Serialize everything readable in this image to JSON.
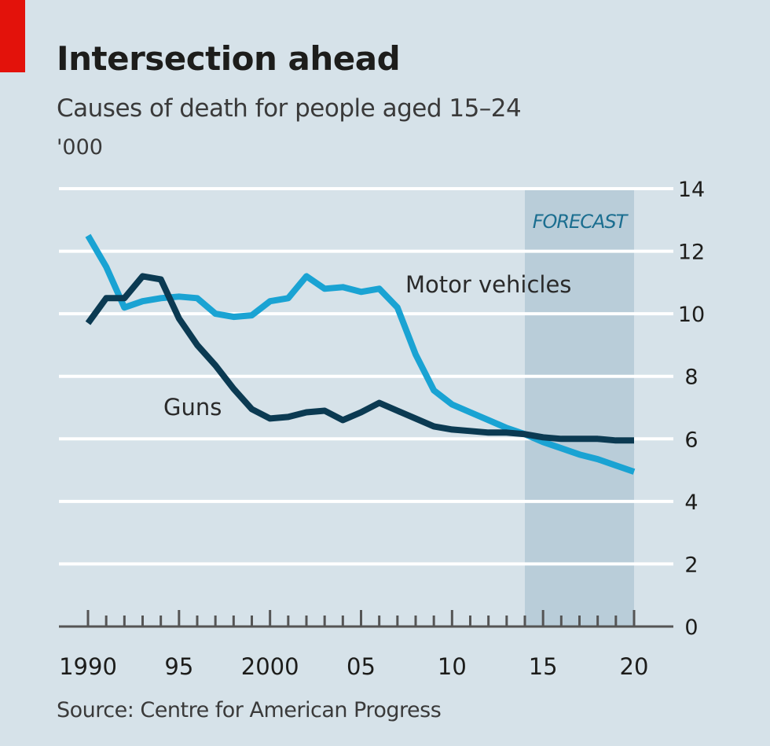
{
  "colors": {
    "accent_red": "#e3120b",
    "guns": "#0b3a52",
    "motor": "#1aa3d3",
    "forecast_band": "#b9cdd9",
    "background": "#d6e2e9"
  },
  "chart_data": {
    "type": "line",
    "title": "Intersection ahead",
    "subtitle": "Causes of death for people aged 15–24",
    "unit": "'000",
    "source": "Source: Centre for American Progress",
    "x": [
      1990,
      1991,
      1992,
      1993,
      1994,
      1995,
      1996,
      1997,
      1998,
      1999,
      2000,
      2001,
      2002,
      2003,
      2004,
      2005,
      2006,
      2007,
      2008,
      2009,
      2010,
      2011,
      2012,
      2013,
      2014,
      2015,
      2016,
      2017,
      2018,
      2019,
      2020
    ],
    "series": [
      {
        "name": "Guns",
        "label": "Guns",
        "values": [
          9.7,
          10.5,
          10.5,
          11.2,
          11.1,
          9.85,
          9.0,
          8.35,
          7.6,
          6.95,
          6.65,
          6.7,
          6.85,
          6.9,
          6.6,
          6.85,
          7.15,
          6.9,
          6.65,
          6.4,
          6.3,
          6.25,
          6.2,
          6.2,
          6.15,
          6.05,
          6.0,
          6.0,
          6.0,
          5.95,
          5.95
        ]
      },
      {
        "name": "Motor vehicles",
        "label": "Motor vehicles",
        "values": [
          12.5,
          11.5,
          10.2,
          10.4,
          10.5,
          10.55,
          10.5,
          10.0,
          9.9,
          9.95,
          10.4,
          10.5,
          11.2,
          10.8,
          10.85,
          10.7,
          10.8,
          10.2,
          8.7,
          7.55,
          7.1,
          6.85,
          6.6,
          6.35,
          6.15,
          5.9,
          5.7,
          5.5,
          5.35,
          5.15,
          4.95
        ]
      }
    ],
    "forecast": {
      "label": "FORECAST",
      "from": 2014,
      "to": 2020
    },
    "xlim": [
      1990,
      2020
    ],
    "ylim": [
      0,
      14
    ],
    "yticks": [
      0,
      2,
      4,
      6,
      8,
      10,
      12,
      14
    ],
    "xtick_values": [
      1990,
      1995,
      2000,
      2005,
      2010,
      2015,
      2020
    ],
    "xtick_labels": [
      "1990",
      "95",
      "2000",
      "05",
      "10",
      "15",
      "20"
    ],
    "ytick_labels": [
      "0",
      "2",
      "4",
      "6",
      "8",
      "10",
      "12",
      "14"
    ],
    "grid": true,
    "y_axis_side": "right"
  }
}
